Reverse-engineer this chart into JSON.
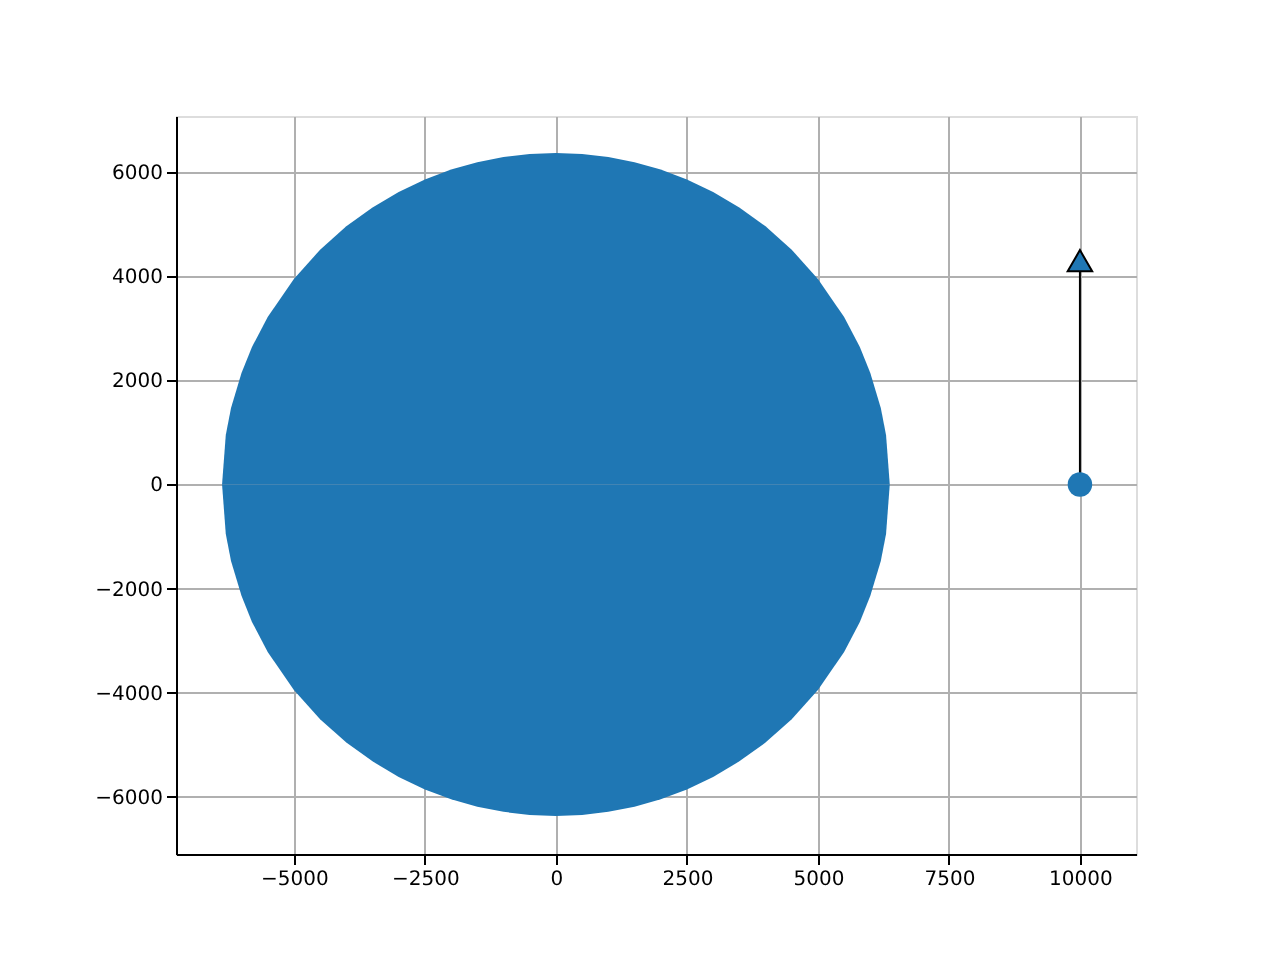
{
  "chart_data": {
    "type": "area",
    "series": [
      {
        "color": "#1f77b4",
        "x": [
          -6371,
          -6300,
          -6200,
          -6000,
          -5800,
          -5500,
          -5000,
          -4500,
          -4000,
          -3500,
          -3000,
          -2500,
          -2000,
          -1500,
          -1000,
          -500,
          0,
          500,
          1000,
          1500,
          2000,
          2500,
          3000,
          3500,
          4000,
          4500,
          5000,
          5500,
          5800,
          6000,
          6200,
          6300,
          6371
        ],
        "values": [
          0,
          950,
          1470,
          2140,
          2640,
          3220,
          3950,
          4510,
          4960,
          5320,
          5620,
          5860,
          6050,
          6190,
          6290,
          6350,
          6370,
          6350,
          6290,
          6190,
          6050,
          5860,
          5620,
          5320,
          4960,
          4510,
          3950,
          3220,
          2640,
          2140,
          1470,
          950,
          0
        ]
      },
      {
        "color": "#1f77b4",
        "x": [
          -6371,
          -6300,
          -6200,
          -6000,
          -5800,
          -5500,
          -5000,
          -4500,
          -4000,
          -3500,
          -3000,
          -2500,
          -2000,
          -1500,
          -1000,
          -500,
          0,
          500,
          1000,
          1500,
          2000,
          2500,
          3000,
          3500,
          4000,
          4500,
          5000,
          5500,
          5800,
          6000,
          6200,
          6300,
          6371
        ],
        "values": [
          0,
          -950,
          -1470,
          -2140,
          -2640,
          -3220,
          -3950,
          -4510,
          -4960,
          -5320,
          -5620,
          -5860,
          -6050,
          -6190,
          -6290,
          -6350,
          -6370,
          -6350,
          -6290,
          -6190,
          -6050,
          -5860,
          -5620,
          -5320,
          -4960,
          -4510,
          -3950,
          -3220,
          -2640,
          -2140,
          -1470,
          -950,
          0
        ]
      },
      {
        "type": "line",
        "color": "#000000",
        "x": [
          10000,
          10000
        ],
        "values": [
          0,
          4300
        ],
        "marker": "triangle"
      },
      {
        "type": "scatter",
        "color": "#1f77b4",
        "x": [
          10000
        ],
        "values": [
          0
        ],
        "marker": "circle"
      }
    ],
    "xlim": [
      -7250,
      11070
    ],
    "ylim": [
      -7100,
      7080
    ],
    "xticks": [
      {
        "value": -5000,
        "label": "−5000"
      },
      {
        "value": -2500,
        "label": "−2500"
      },
      0,
      2500,
      5000,
      7500,
      10000
    ],
    "yticks": [
      {
        "value": -6000,
        "label": "−6000"
      },
      {
        "value": -4000,
        "label": "−4000"
      },
      {
        "value": -2000,
        "label": "−2000"
      },
      0,
      2000,
      4000,
      6000
    ],
    "grid": true
  }
}
